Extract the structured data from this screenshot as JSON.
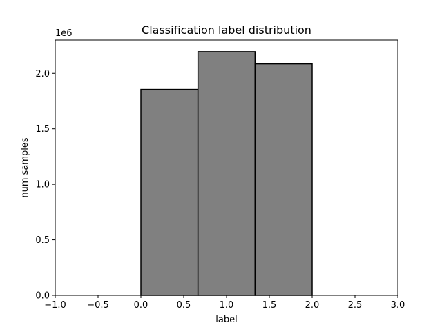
{
  "chart_data": {
    "type": "bar",
    "title": "Classification label distribution",
    "xlabel": "label",
    "ylabel": "num samples",
    "y_offset_label": "1e6",
    "xlim": [
      -1.0,
      3.0
    ],
    "ylim": [
      0,
      2.3
    ],
    "x_ticks": [
      -1.0,
      -0.5,
      0.0,
      0.5,
      1.0,
      1.5,
      2.0,
      2.5,
      3.0
    ],
    "x_tick_labels": [
      "−1.0",
      "−0.5",
      "0.0",
      "0.5",
      "1.0",
      "1.5",
      "2.0",
      "2.5",
      "3.0"
    ],
    "y_ticks": [
      0.0,
      0.5,
      1.0,
      1.5,
      2.0
    ],
    "y_tick_labels": [
      "0.0",
      "0.5",
      "1.0",
      "1.5",
      "2.0"
    ],
    "bins": [
      {
        "x0": 0.0,
        "x1": 0.6667,
        "value": 1.855
      },
      {
        "x0": 0.6667,
        "x1": 1.3333,
        "value": 2.195
      },
      {
        "x0": 1.3333,
        "x1": 2.0,
        "value": 2.085
      }
    ],
    "bar_color": "#808080",
    "edge_color": "#000000",
    "grid": false,
    "legend": "none"
  }
}
